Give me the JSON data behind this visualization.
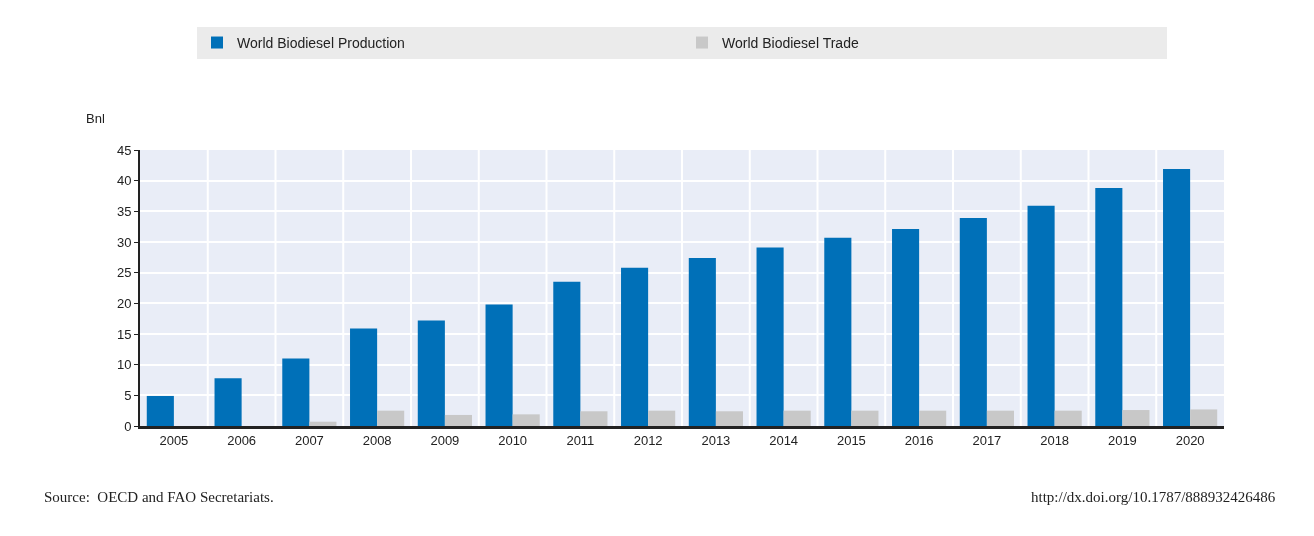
{
  "chart_data": {
    "type": "bar",
    "ylabel": "Bnl",
    "categories": [
      "2005",
      "2006",
      "2007",
      "2008",
      "2009",
      "2010",
      "2011",
      "2012",
      "2013",
      "2014",
      "2015",
      "2016",
      "2017",
      "2018",
      "2019",
      "2020"
    ],
    "series": [
      {
        "name": "World Biodiesel Production",
        "color": "#0070b8",
        "values": [
          4.9,
          7.8,
          11,
          15.9,
          17.2,
          19.8,
          23.5,
          25.8,
          27.4,
          29.1,
          30.7,
          32.1,
          33.9,
          35.9,
          38.8,
          41.9
        ]
      },
      {
        "name": "World Biodiesel Trade",
        "color": "#c8c8c8",
        "values": [
          0,
          0,
          0.7,
          2.5,
          1.8,
          1.9,
          2.4,
          2.5,
          2.4,
          2.5,
          2.5,
          2.5,
          2.5,
          2.5,
          2.6,
          2.7
        ]
      }
    ],
    "ylim": [
      0,
      45
    ],
    "yticks": [
      0,
      5,
      10,
      15,
      20,
      25,
      30,
      35,
      40,
      45
    ],
    "grid": true,
    "legend": "top",
    "annotations": [
      "Source:  OECD and FAO Secretariats.",
      "http://dx.doi.org/10.1787/888932426486"
    ]
  }
}
